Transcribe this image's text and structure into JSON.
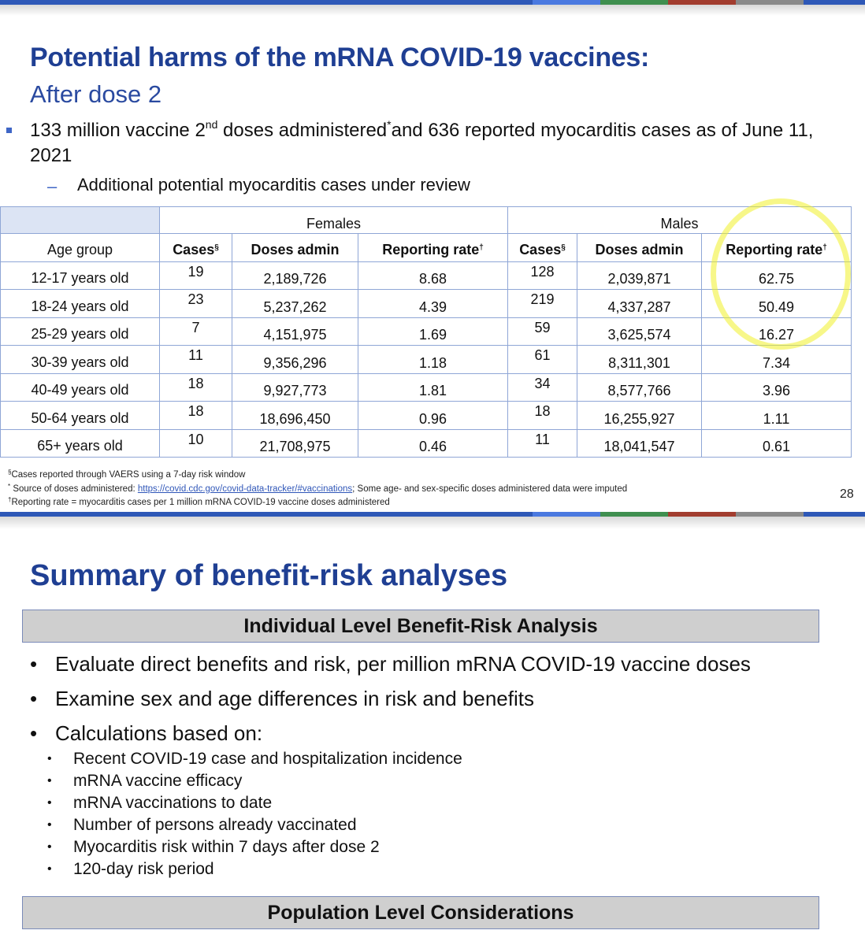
{
  "colors": {
    "title_blue": "#1f3f93",
    "stripe": [
      "#2e58b7",
      "#4a79e0",
      "#3f8f4f",
      "#a23d2f",
      "#8a8a8a",
      "#2e58b7"
    ],
    "table_border": "#8fa6d6",
    "highlight": "#f0f028",
    "box_fill": "#cfcfcf"
  },
  "slide1": {
    "title": "Potential harms of the mRNA COVID-19 vaccines:",
    "subtitle": "After dose 2",
    "bullet": {
      "part1": "133 million vaccine 2",
      "sup1": "nd",
      "part2": " doses administered",
      "sup2": "*",
      "part3": "and 636 reported myocarditis cases as of June 11, 2021"
    },
    "sub_bullet_marker": "–",
    "sub_bullet": "Additional potential myocarditis cases under review",
    "table": {
      "group_female": "Females",
      "group_male": "Males",
      "headers": {
        "age": "Age group",
        "cases": "Cases",
        "cases_mark": "§",
        "doses": "Doses admin",
        "rate": "Reporting rate",
        "rate_mark": "†"
      },
      "rows": [
        {
          "age": "12-17 years old",
          "f_cases": "19",
          "f_doses": "2,189,726",
          "f_rate": "8.68",
          "m_cases": "128",
          "m_doses": "2,039,871",
          "m_rate": "62.75"
        },
        {
          "age": "18-24 years old",
          "f_cases": "23",
          "f_doses": "5,237,262",
          "f_rate": "4.39",
          "m_cases": "219",
          "m_doses": "4,337,287",
          "m_rate": "50.49"
        },
        {
          "age": "25-29 years old",
          "f_cases": "7",
          "f_doses": "4,151,975",
          "f_rate": "1.69",
          "m_cases": "59",
          "m_doses": "3,625,574",
          "m_rate": "16.27"
        },
        {
          "age": "30-39 years old",
          "f_cases": "11",
          "f_doses": "9,356,296",
          "f_rate": "1.18",
          "m_cases": "61",
          "m_doses": "8,311,301",
          "m_rate": "7.34"
        },
        {
          "age": "40-49 years old",
          "f_cases": "18",
          "f_doses": "9,927,773",
          "f_rate": "1.81",
          "m_cases": "34",
          "m_doses": "8,577,766",
          "m_rate": "3.96"
        },
        {
          "age": "50-64 years old",
          "f_cases": "18",
          "f_doses": "18,696,450",
          "f_rate": "0.96",
          "m_cases": "18",
          "m_doses": "16,255,927",
          "m_rate": "1.11"
        },
        {
          "age": "65+ years old",
          "f_cases": "10",
          "f_doses": "21,708,975",
          "f_rate": "0.46",
          "m_cases": "11",
          "m_doses": "18,041,547",
          "m_rate": "0.61"
        }
      ]
    },
    "footnotes": {
      "n1_mark": "§",
      "n1": "Cases reported through VAERS using a 7-day risk window",
      "n2_mark": "*",
      "n2_prefix": " Source of doses administered: ",
      "n2_link": "https://covid.cdc.gov/covid-data-tracker/#vaccinations",
      "n2_suffix": "; Some age- and sex-specific doses administered data were imputed",
      "n3_mark": "†",
      "n3": "Reporting rate = myocarditis cases per 1 million mRNA COVID-19 vaccine doses administered"
    },
    "page_number": "28"
  },
  "slide2": {
    "title": "Summary of benefit-risk analyses",
    "box1": "Individual Level Benefit-Risk Analysis",
    "bullets": [
      "Evaluate direct benefits and risk, per million mRNA COVID-19 vaccine doses",
      "Examine sex and age differences in risk and benefits",
      "Calculations based on:"
    ],
    "sub_bullets": [
      "Recent COVID-19 case and hospitalization incidence",
      "mRNA vaccine efficacy",
      "mRNA vaccinations to date",
      "Number of persons already vaccinated",
      "Myocarditis risk within 7 days after dose 2",
      "120-day risk period"
    ],
    "box2": "Population Level Considerations",
    "bullet_marker": "•"
  }
}
